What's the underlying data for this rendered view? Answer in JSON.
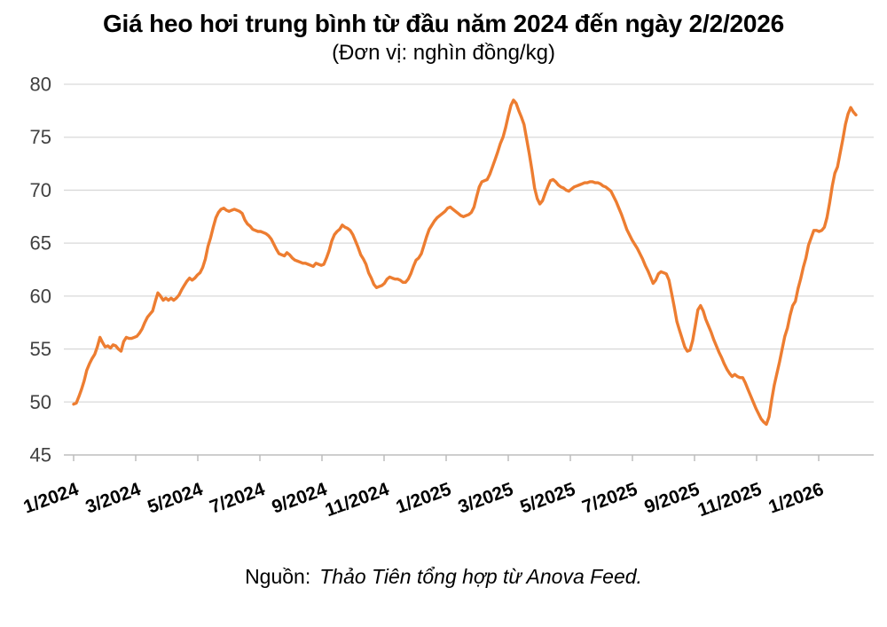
{
  "page": {
    "title": "Giá heo hơi trung bình từ đầu năm 2024 đến ngày 2/2/2026",
    "subtitle": "(Đơn vị: nghìn đồng/kg)"
  },
  "source": {
    "label": "Nguồn:",
    "text": "Thảo Tiên tổng hợp từ Anova Feed."
  },
  "chart_data": {
    "type": "line",
    "title": "Giá heo hơi trung bình từ đầu năm 2024 đến ngày 2/2/2026",
    "unit_note": "(Đơn vị: nghìn đồng/kg)",
    "legend": false,
    "grid": true,
    "x": {
      "unit": "months since 1/2024",
      "start": 0,
      "end": 25.2,
      "tick_labels": [
        "1/2024",
        "3/2024",
        "5/2024",
        "7/2024",
        "9/2024",
        "11/2024",
        "1/2025",
        "3/2025",
        "5/2025",
        "7/2025",
        "9/2025",
        "11/2025",
        "1/2026"
      ],
      "tick_month_offsets": [
        0,
        2,
        4,
        6,
        8,
        10,
        12,
        14,
        16,
        18,
        20,
        22,
        24
      ]
    },
    "y": {
      "ticks": [
        45,
        50,
        55,
        60,
        65,
        70,
        75,
        80
      ],
      "lim": [
        45,
        80
      ]
    },
    "colors": {
      "line": "#ED7D31",
      "grid": "#D9D9D9",
      "axis": "#BDBDBD",
      "y_tick_label": "#404040",
      "x_tick_label": "#000000"
    },
    "series": [
      {
        "name": "Giá heo hơi trung bình (nghìn đồng/kg)",
        "values": [
          49.8,
          49.9,
          50.5,
          51.2,
          52.0,
          53.0,
          53.6,
          54.1,
          54.5,
          55.2,
          56.1,
          55.6,
          55.2,
          55.3,
          55.1,
          55.4,
          55.3,
          55.0,
          54.8,
          55.7,
          56.1,
          56.0,
          56.0,
          56.1,
          56.2,
          56.5,
          56.9,
          57.5,
          58.0,
          58.3,
          58.6,
          59.5,
          60.3,
          60.0,
          59.6,
          59.8,
          59.6,
          59.8,
          59.6,
          59.8,
          60.1,
          60.6,
          61.0,
          61.4,
          61.7,
          61.5,
          61.7,
          62.0,
          62.2,
          62.7,
          63.5,
          64.7,
          65.5,
          66.5,
          67.4,
          67.9,
          68.2,
          68.3,
          68.1,
          68.0,
          68.1,
          68.2,
          68.1,
          68.0,
          67.8,
          67.2,
          66.8,
          66.6,
          66.3,
          66.2,
          66.1,
          66.1,
          66.0,
          65.9,
          65.7,
          65.4,
          64.9,
          64.4,
          64.0,
          63.9,
          63.8,
          64.1,
          63.9,
          63.6,
          63.4,
          63.3,
          63.2,
          63.1,
          63.1,
          63.0,
          62.9,
          62.8,
          63.1,
          63.0,
          62.9,
          63.0,
          63.6,
          64.3,
          65.2,
          65.8,
          66.1,
          66.3,
          66.7,
          66.5,
          66.4,
          66.2,
          65.8,
          65.2,
          64.6,
          63.9,
          63.5,
          63.0,
          62.2,
          61.7,
          61.1,
          60.8,
          60.9,
          61.0,
          61.2,
          61.6,
          61.8,
          61.7,
          61.6,
          61.6,
          61.5,
          61.3,
          61.3,
          61.6,
          62.1,
          62.8,
          63.4,
          63.6,
          64.0,
          64.8,
          65.6,
          66.3,
          66.7,
          67.1,
          67.4,
          67.6,
          67.8,
          68.0,
          68.3,
          68.4,
          68.2,
          68.0,
          67.8,
          67.6,
          67.5,
          67.6,
          67.7,
          67.9,
          68.4,
          69.4,
          70.3,
          70.8,
          70.9,
          71.0,
          71.5,
          72.2,
          72.9,
          73.6,
          74.4,
          75.0,
          75.9,
          77.0,
          78.0,
          78.5,
          78.2,
          77.5,
          76.9,
          76.2,
          74.8,
          73.4,
          71.9,
          70.2,
          69.2,
          68.7,
          69.0,
          69.7,
          70.3,
          70.9,
          71.0,
          70.8,
          70.5,
          70.3,
          70.2,
          70.0,
          69.9,
          70.1,
          70.3,
          70.4,
          70.5,
          70.6,
          70.7,
          70.7,
          70.8,
          70.8,
          70.7,
          70.7,
          70.6,
          70.4,
          70.3,
          70.1,
          69.9,
          69.4,
          68.9,
          68.3,
          67.7,
          67.0,
          66.3,
          65.8,
          65.3,
          64.9,
          64.5,
          64.0,
          63.5,
          62.9,
          62.4,
          61.8,
          61.2,
          61.5,
          62.1,
          62.3,
          62.2,
          62.1,
          61.5,
          60.3,
          59.0,
          57.6,
          56.8,
          56.0,
          55.2,
          54.8,
          54.9,
          55.8,
          57.2,
          58.7,
          59.1,
          58.6,
          57.8,
          57.2,
          56.6,
          55.9,
          55.3,
          54.7,
          54.2,
          53.6,
          53.1,
          52.7,
          52.4,
          52.6,
          52.4,
          52.3,
          52.3,
          51.8,
          51.2,
          50.6,
          50.0,
          49.4,
          48.9,
          48.4,
          48.1,
          47.9,
          48.6,
          50.2,
          51.6,
          52.7,
          53.8,
          55.0,
          56.2,
          57.0,
          58.2,
          59.1,
          59.5,
          60.7,
          61.6,
          62.7,
          63.6,
          64.8,
          65.5,
          66.2,
          66.2,
          66.1,
          66.2,
          66.5,
          67.4,
          68.8,
          70.4,
          71.6,
          72.2,
          73.5,
          74.8,
          76.2,
          77.2,
          77.8,
          77.4,
          77.1
        ]
      }
    ]
  }
}
